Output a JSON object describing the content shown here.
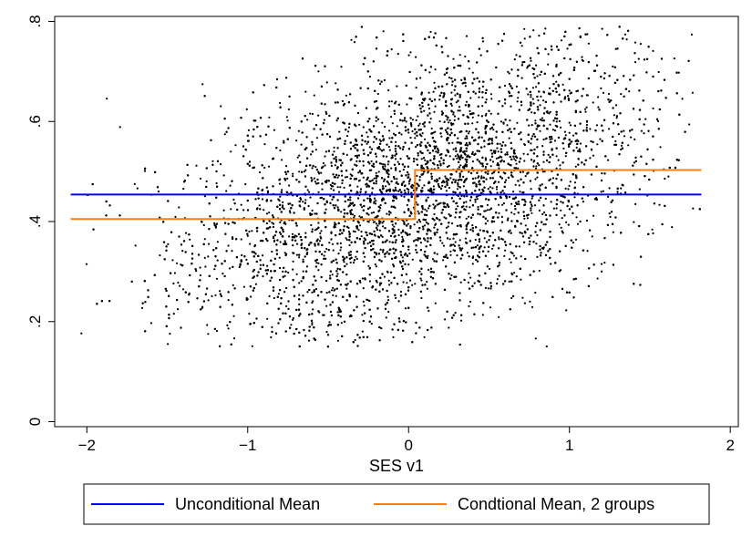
{
  "chart_data": {
    "type": "scatter",
    "title": "",
    "xlabel": "SES v1",
    "ylabel": "",
    "xlim": [
      -2.2,
      2.05
    ],
    "ylim": [
      -0.01,
      0.81
    ],
    "x_ticks": [
      -2,
      -1,
      0,
      1,
      2
    ],
    "x_tick_labels": [
      "−2",
      "−1",
      "0",
      "1",
      "2"
    ],
    "y_ticks": [
      0,
      0.2,
      0.4,
      0.6,
      0.8
    ],
    "y_tick_labels": [
      "0",
      ".2",
      ".4",
      ".6",
      ".8"
    ],
    "grid": false,
    "legend_position": "bottom",
    "scatter": {
      "color": "#000000",
      "x_range": [
        -2.1,
        1.82
      ],
      "y_range": [
        0.15,
        0.79
      ],
      "n_points": 9000,
      "description": "dense cloud, positive association with SES"
    },
    "series": [
      {
        "name": "Unconditional Mean",
        "type": "line",
        "color": "#0000ff",
        "points": [
          [
            -2.1,
            0.454
          ],
          [
            1.82,
            0.454
          ]
        ]
      },
      {
        "name": "Condtional Mean, 2 groups",
        "type": "step",
        "color": "#ff7f0e",
        "points": [
          [
            -2.1,
            0.405
          ],
          [
            0.04,
            0.405
          ],
          [
            0.04,
            0.503
          ],
          [
            1.82,
            0.503
          ]
        ]
      }
    ]
  }
}
